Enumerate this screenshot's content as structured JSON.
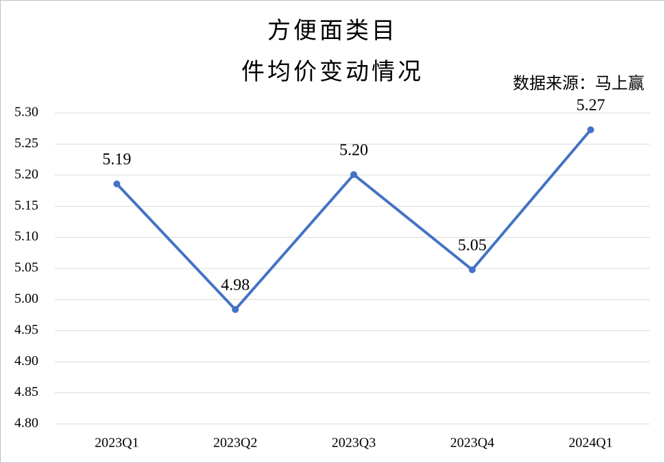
{
  "chart_data": {
    "type": "line",
    "title": "方便面类目",
    "subtitle": "件均价变动情况",
    "annotation": "数据来源：马上赢",
    "categories": [
      "2023Q1",
      "2023Q2",
      "2023Q3",
      "2023Q4",
      "2024Q1"
    ],
    "values": [
      5.186,
      4.984,
      5.201,
      5.048,
      5.273
    ],
    "value_labels": [
      "5.19",
      "4.98",
      "5.20",
      "5.05",
      "5.27"
    ],
    "color": "#4472c4",
    "ylim": [
      4.8,
      5.3
    ],
    "yticks": [
      {
        "value": 4.8,
        "label": "4.80"
      },
      {
        "value": 4.85,
        "label": "4.85"
      },
      {
        "value": 4.9,
        "label": "4.90"
      },
      {
        "value": 4.95,
        "label": "4.95"
      },
      {
        "value": 5.0,
        "label": "5.00"
      },
      {
        "value": 5.05,
        "label": "5.05"
      },
      {
        "value": 5.1,
        "label": "5.10"
      },
      {
        "value": 5.15,
        "label": "5.15"
      },
      {
        "value": 5.2,
        "label": "5.20"
      },
      {
        "value": 5.25,
        "label": "5.25"
      },
      {
        "value": 5.3,
        "label": "5.30"
      }
    ],
    "grid": true
  }
}
